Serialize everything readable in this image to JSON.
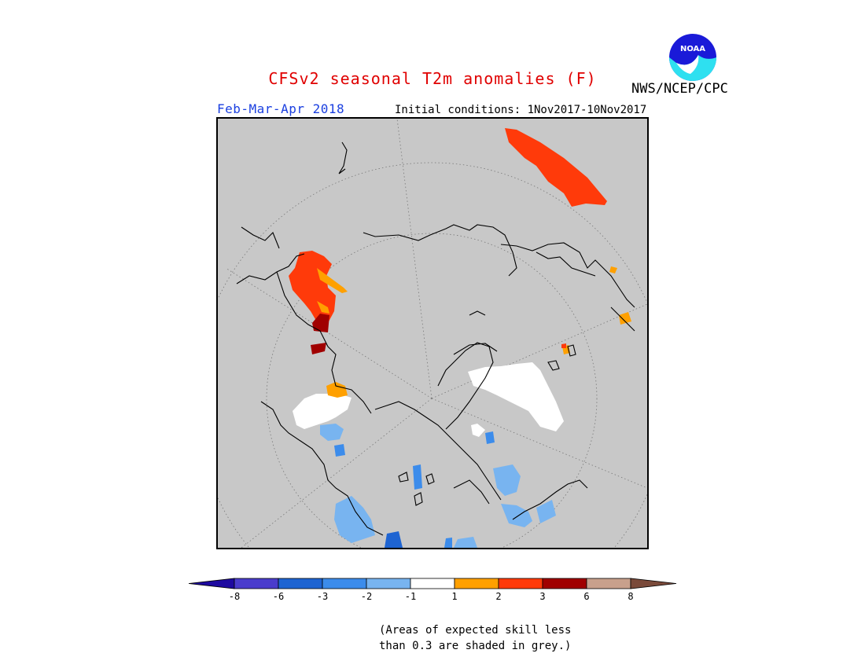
{
  "header": {
    "title": "CFSv2 seasonal T2m anomalies (F)",
    "title_color": "#e00000",
    "period": "Feb-Mar-Apr 2018",
    "period_color": "#1a3fe0",
    "initial_conditions": "Initial conditions: 1Nov2017-10Nov2017",
    "agency": "NWS/NCEP/CPC"
  },
  "logo": {
    "icon": "noaa-logo-icon",
    "text": "NOAA"
  },
  "map": {
    "projection": "north-polar-stereographic",
    "background_color": "#c8c8c8",
    "coastline_color": "#000000",
    "gridline_color": "#808080"
  },
  "legend": {
    "tick_labels": [
      "-8",
      "-6",
      "-3",
      "-2",
      "-1",
      "1",
      "2",
      "3",
      "6",
      "8"
    ],
    "colors": [
      "#1e0aa0",
      "#4a3ccc",
      "#1e64d2",
      "#3c8ceb",
      "#78b4f0",
      "#ffffff",
      "#ffa000",
      "#ff3a0a",
      "#a00000",
      "#c8a08c",
      "#7a4a3a"
    ]
  },
  "note": {
    "line1": "(Areas of expected skill less",
    "line2": "than 0.3 are shaded in grey.)"
  }
}
